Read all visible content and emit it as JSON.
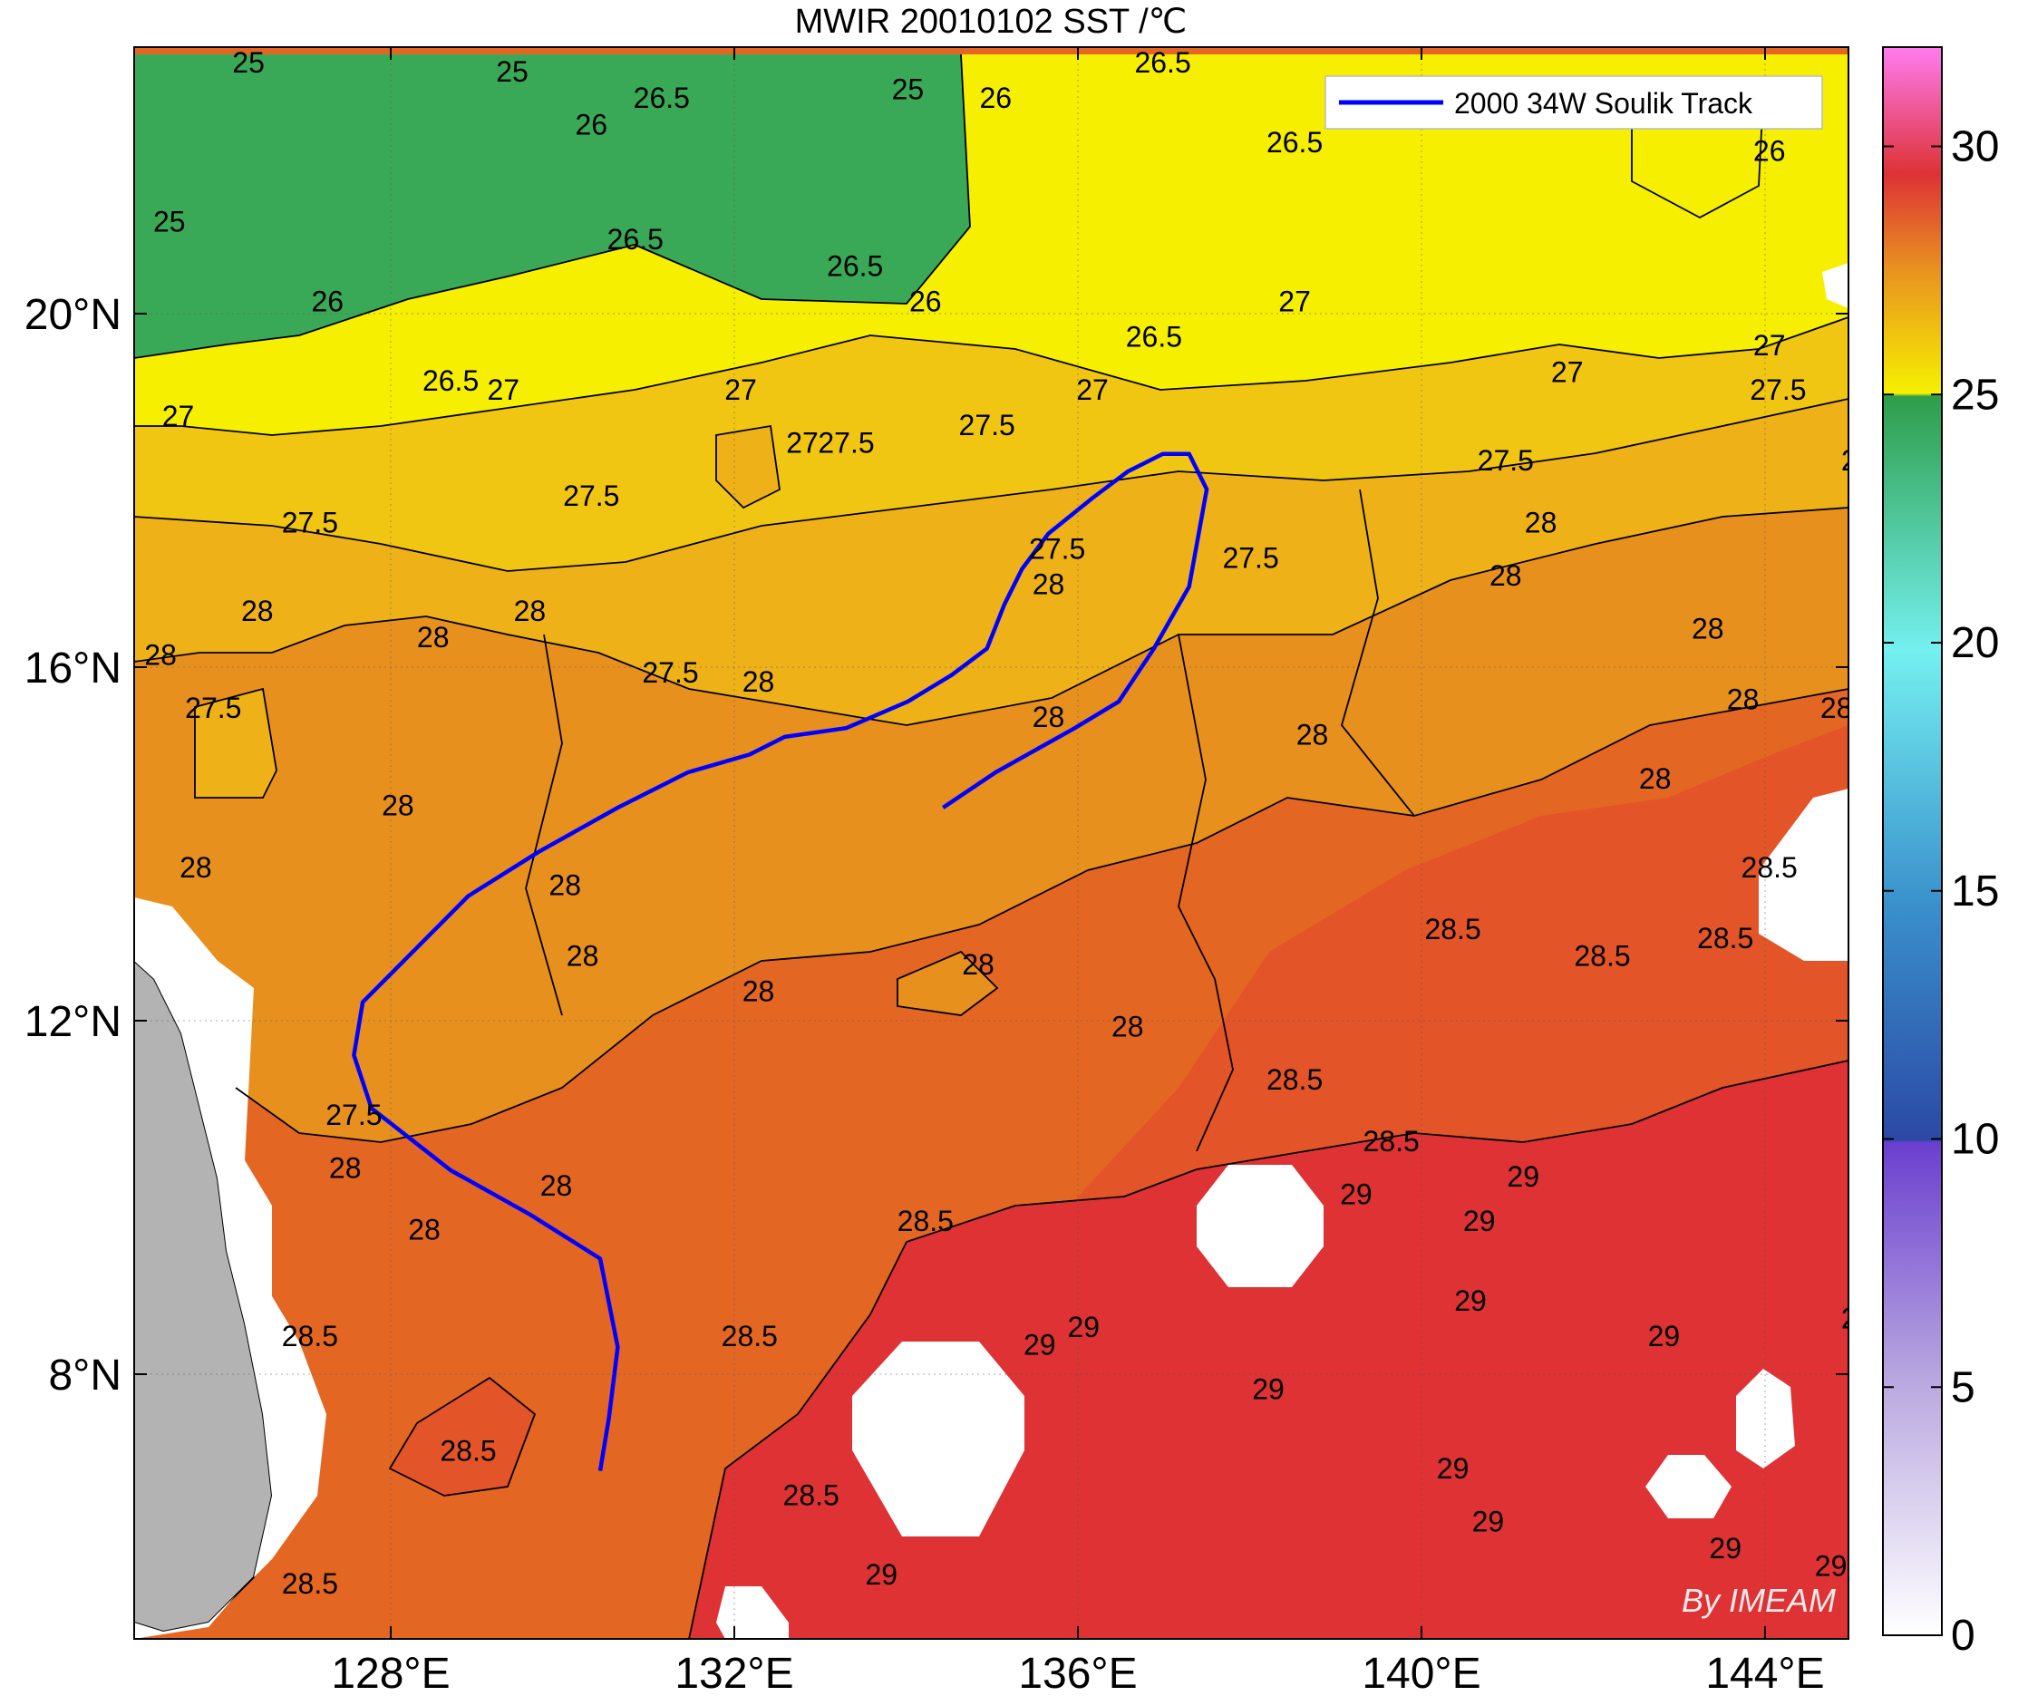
{
  "title": "MWIR 20010102 SST /℃",
  "legend": {
    "label": "2000 34W Soulik Track",
    "color": "#0000ff",
    "placement": "top-right"
  },
  "watermark": "By IMEAM",
  "x_ticks": [
    "128°E",
    "132°E",
    "136°E",
    "140°E",
    "144°E"
  ],
  "y_ticks": [
    "20°N",
    "16°N",
    "12°N",
    "8°N"
  ],
  "colorbar": {
    "range": [
      0,
      32
    ],
    "ticks": [
      "0",
      "5",
      "10",
      "15",
      "20",
      "25",
      "30"
    ],
    "tick_values": [
      0,
      5,
      10,
      15,
      20,
      25,
      30
    ]
  },
  "region": {
    "lon_range": [
      125.0,
      144.5
    ],
    "lat_range": [
      5.0,
      23.0
    ]
  },
  "contour_levels": [
    25,
    25.5,
    26,
    26.5,
    27,
    27.5,
    28,
    28.5,
    29
  ],
  "level_colors": {
    "25": "#3cb872",
    "25.5": "#33a150",
    "26": "#2f9c47",
    "26.5": "#f6f000",
    "27": "#f3cf10",
    "27.5": "#eeb51a",
    "28": "#e8921e",
    "28.5": "#e46623",
    "29": "#e24b2d",
    "30": "#d93238"
  },
  "contour_labels": [
    {
      "t": "25",
      "lon": 126.3,
      "lat": 22.8
    },
    {
      "t": "25",
      "lon": 129.3,
      "lat": 22.7
    },
    {
      "t": "25",
      "lon": 133.8,
      "lat": 22.5
    },
    {
      "t": "25",
      "lon": 125.4,
      "lat": 21.0
    },
    {
      "t": "26",
      "lon": 130.2,
      "lat": 22.1
    },
    {
      "t": "26",
      "lon": 134.8,
      "lat": 22.4
    },
    {
      "t": "26",
      "lon": 127.2,
      "lat": 20.1
    },
    {
      "t": "26",
      "lon": 134.0,
      "lat": 20.1
    },
    {
      "t": "26",
      "lon": 143.6,
      "lat": 21.8
    },
    {
      "t": "26.5",
      "lon": 131.0,
      "lat": 22.4
    },
    {
      "t": "26.5",
      "lon": 136.7,
      "lat": 22.8
    },
    {
      "t": "26.5",
      "lon": 138.2,
      "lat": 21.9
    },
    {
      "t": "26.5",
      "lon": 130.7,
      "lat": 20.8
    },
    {
      "t": "26.5",
      "lon": 133.2,
      "lat": 20.5
    },
    {
      "t": "26.5",
      "lon": 136.6,
      "lat": 19.7
    },
    {
      "t": "26.5",
      "lon": 128.6,
      "lat": 19.2
    },
    {
      "t": "27",
      "lon": 129.2,
      "lat": 19.1
    },
    {
      "t": "27",
      "lon": 131.9,
      "lat": 19.1
    },
    {
      "t": "27",
      "lon": 135.9,
      "lat": 19.1
    },
    {
      "t": "27",
      "lon": 138.2,
      "lat": 20.1
    },
    {
      "t": "27",
      "lon": 141.3,
      "lat": 19.3
    },
    {
      "t": "27",
      "lon": 143.6,
      "lat": 19.6
    },
    {
      "t": "27",
      "lon": 125.5,
      "lat": 18.8
    },
    {
      "t": "27",
      "lon": 132.6,
      "lat": 18.5
    },
    {
      "t": "27.5",
      "lon": 133.1,
      "lat": 18.5
    },
    {
      "t": "27.5",
      "lon": 134.7,
      "lat": 18.7
    },
    {
      "t": "27.5",
      "lon": 127.0,
      "lat": 17.6
    },
    {
      "t": "27.5",
      "lon": 130.2,
      "lat": 17.9
    },
    {
      "t": "27.5",
      "lon": 135.5,
      "lat": 17.3
    },
    {
      "t": "27.5",
      "lon": 137.7,
      "lat": 17.2
    },
    {
      "t": "27.5",
      "lon": 131.1,
      "lat": 15.9
    },
    {
      "t": "27.5",
      "lon": 125.9,
      "lat": 15.5
    },
    {
      "t": "27.5",
      "lon": 140.6,
      "lat": 18.3
    },
    {
      "t": "27.5",
      "lon": 143.7,
      "lat": 19.1
    },
    {
      "t": "27.5",
      "lon": 127.5,
      "lat": 10.9
    },
    {
      "t": "28",
      "lon": 125.3,
      "lat": 16.1
    },
    {
      "t": "28",
      "lon": 126.4,
      "lat": 16.6
    },
    {
      "t": "28",
      "lon": 128.4,
      "lat": 16.3
    },
    {
      "t": "28",
      "lon": 129.5,
      "lat": 16.6
    },
    {
      "t": "28",
      "lon": 132.1,
      "lat": 15.8
    },
    {
      "t": "28",
      "lon": 135.4,
      "lat": 16.9
    },
    {
      "t": "28",
      "lon": 135.4,
      "lat": 15.4
    },
    {
      "t": "28",
      "lon": 128.0,
      "lat": 14.4
    },
    {
      "t": "28",
      "lon": 125.7,
      "lat": 13.7
    },
    {
      "t": "28",
      "lon": 129.9,
      "lat": 13.5
    },
    {
      "t": "28",
      "lon": 130.1,
      "lat": 12.7
    },
    {
      "t": "28",
      "lon": 134.6,
      "lat": 12.6
    },
    {
      "t": "28",
      "lon": 132.1,
      "lat": 12.3
    },
    {
      "t": "28",
      "lon": 136.3,
      "lat": 11.9
    },
    {
      "t": "28",
      "lon": 127.4,
      "lat": 10.3
    },
    {
      "t": "28",
      "lon": 129.8,
      "lat": 10.1
    },
    {
      "t": "28",
      "lon": 128.3,
      "lat": 9.6
    },
    {
      "t": "28",
      "lon": 138.4,
      "lat": 15.2
    },
    {
      "t": "28",
      "lon": 141.0,
      "lat": 17.6
    },
    {
      "t": "28",
      "lon": 140.6,
      "lat": 17.0
    },
    {
      "t": "28",
      "lon": 142.9,
      "lat": 16.4
    },
    {
      "t": "28",
      "lon": 143.3,
      "lat": 15.6
    },
    {
      "t": "28",
      "lon": 142.3,
      "lat": 14.7
    },
    {
      "t": "28",
      "lon": 144.6,
      "lat": 18.3
    },
    {
      "t": "28.5",
      "lon": 144.5,
      "lat": 15.5
    },
    {
      "t": "28.5",
      "lon": 143.6,
      "lat": 13.7
    },
    {
      "t": "28.5",
      "lon": 140.0,
      "lat": 13.0
    },
    {
      "t": "28.5",
      "lon": 141.7,
      "lat": 12.7
    },
    {
      "t": "28.5",
      "lon": 143.1,
      "lat": 12.9
    },
    {
      "t": "28.5",
      "lon": 138.2,
      "lat": 11.3
    },
    {
      "t": "28.5",
      "lon": 139.3,
      "lat": 10.6
    },
    {
      "t": "28.5",
      "lon": 134.0,
      "lat": 9.7
    },
    {
      "t": "28.5",
      "lon": 132.0,
      "lat": 8.4
    },
    {
      "t": "28.5",
      "lon": 127.0,
      "lat": 8.4
    },
    {
      "t": "28.5",
      "lon": 128.8,
      "lat": 7.1
    },
    {
      "t": "28.5",
      "lon": 132.7,
      "lat": 6.6
    },
    {
      "t": "28.5",
      "lon": 127.0,
      "lat": 5.6
    },
    {
      "t": "29",
      "lon": 140.8,
      "lat": 10.2
    },
    {
      "t": "29",
      "lon": 138.9,
      "lat": 10.0
    },
    {
      "t": "29",
      "lon": 140.3,
      "lat": 9.7
    },
    {
      "t": "29",
      "lon": 140.2,
      "lat": 8.8
    },
    {
      "t": "29",
      "lon": 142.4,
      "lat": 8.4
    },
    {
      "t": "29",
      "lon": 135.8,
      "lat": 8.5
    },
    {
      "t": "29",
      "lon": 135.3,
      "lat": 8.3
    },
    {
      "t": "29",
      "lon": 137.9,
      "lat": 7.8
    },
    {
      "t": "29",
      "lon": 140.0,
      "lat": 6.9
    },
    {
      "t": "29",
      "lon": 140.4,
      "lat": 6.3
    },
    {
      "t": "29",
      "lon": 143.1,
      "lat": 6.0
    },
    {
      "t": "29",
      "lon": 144.3,
      "lat": 5.8
    },
    {
      "t": "29",
      "lon": 144.6,
      "lat": 8.6
    },
    {
      "t": "29",
      "lon": 133.5,
      "lat": 5.7
    }
  ],
  "storm_track": [
    [
      130.3,
      6.9
    ],
    [
      130.4,
      7.5
    ],
    [
      130.5,
      8.3
    ],
    [
      130.3,
      9.3
    ],
    [
      129.5,
      9.8
    ],
    [
      128.6,
      10.3
    ],
    [
      127.7,
      11.0
    ],
    [
      127.5,
      11.6
    ],
    [
      127.6,
      12.2
    ],
    [
      128.2,
      12.8
    ],
    [
      128.8,
      13.4
    ],
    [
      129.6,
      13.9
    ],
    [
      130.5,
      14.4
    ],
    [
      131.3,
      14.8
    ],
    [
      132.0,
      15.0
    ],
    [
      132.4,
      15.2
    ],
    [
      133.1,
      15.3
    ],
    [
      133.8,
      15.6
    ],
    [
      134.3,
      15.9
    ],
    [
      134.7,
      16.2
    ],
    [
      134.9,
      16.7
    ],
    [
      135.1,
      17.1
    ],
    [
      135.4,
      17.5
    ],
    [
      135.9,
      17.9
    ],
    [
      136.3,
      18.2
    ],
    [
      136.7,
      18.4
    ],
    [
      137.0,
      18.4
    ],
    [
      137.2,
      18.0
    ],
    [
      137.0,
      16.9
    ],
    [
      136.6,
      16.2
    ],
    [
      136.2,
      15.6
    ],
    [
      135.7,
      15.3
    ],
    [
      134.8,
      14.8
    ],
    [
      134.2,
      14.4
    ]
  ]
}
